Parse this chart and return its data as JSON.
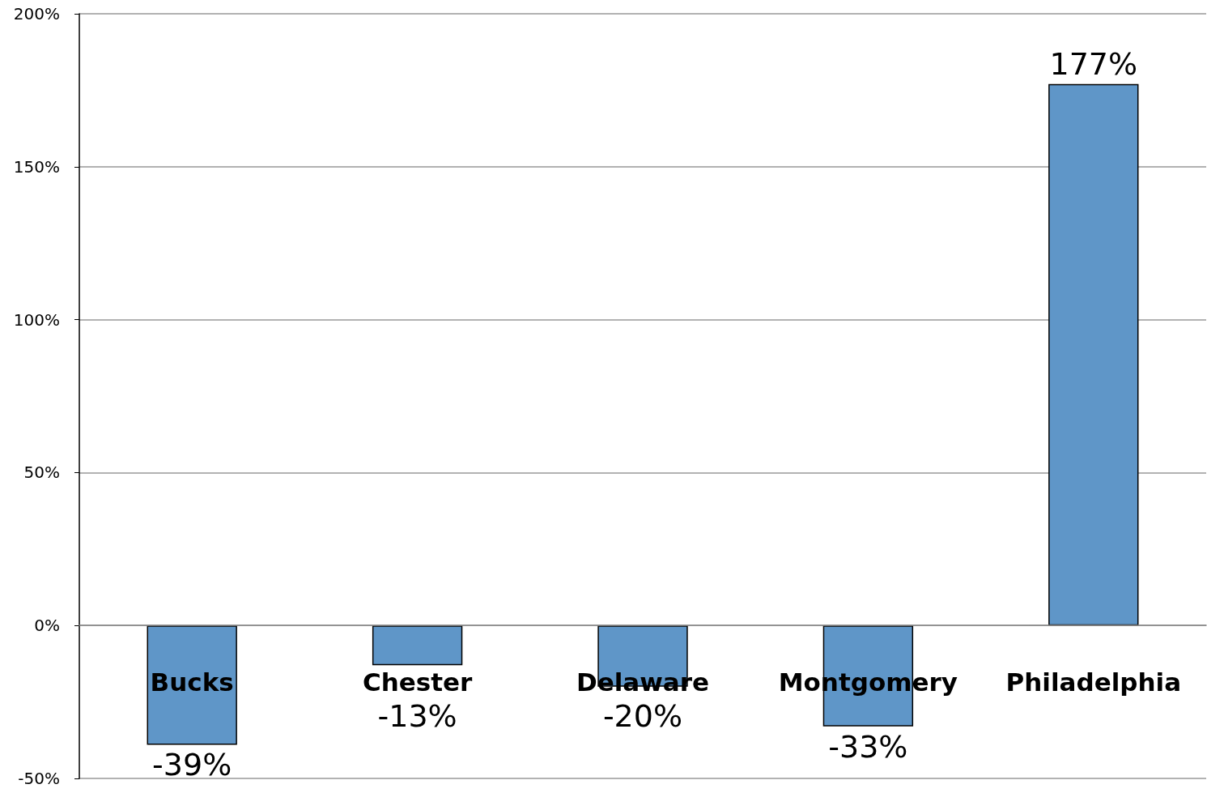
{
  "chart_data": {
    "type": "bar",
    "categories": [
      "Bucks",
      "Chester",
      "Delaware",
      "Montgomery",
      "Philadelphia"
    ],
    "values": [
      -39,
      -13,
      -20,
      -33,
      177
    ],
    "value_labels": [
      "-39%",
      "-13%",
      "-20%",
      "-33%",
      "177%"
    ],
    "color": "#5f96c8",
    "ylim": [
      -50,
      200
    ],
    "yticks": [
      {
        "value": -50,
        "label": "-50%"
      },
      {
        "value": 0,
        "label": "0%"
      },
      {
        "value": 50,
        "label": "50%"
      },
      {
        "value": 100,
        "label": "100%"
      },
      {
        "value": 150,
        "label": "150%"
      },
      {
        "value": 200,
        "label": "200%"
      }
    ],
    "grid": true
  }
}
